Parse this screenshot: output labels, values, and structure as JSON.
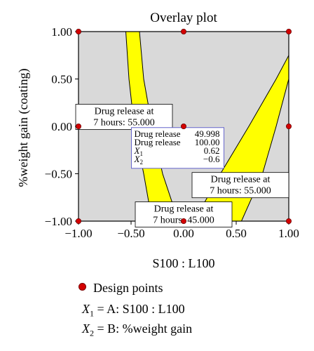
{
  "chart_data": {
    "type": "overlay contour",
    "title": "Overlay plot",
    "xlabel": "S100 : L100",
    "ylabel": "%weight gain (coating)",
    "xlim": [
      -1.0,
      1.0
    ],
    "ylim": [
      -1.0,
      1.0
    ],
    "x_ticks": [
      "−1.00",
      "−0.50",
      "0.00",
      "0.50",
      "1.00"
    ],
    "y_ticks": [
      "1.00",
      "0.50",
      "0.00",
      "−0.50",
      "−1.00"
    ],
    "grid": false,
    "colors": {
      "background": "#d9d9d9",
      "feasible": "#ffff00",
      "design_points": "#d40000"
    },
    "design_points": [
      {
        "x": -1,
        "y": 1
      },
      {
        "x": 0,
        "y": 1
      },
      {
        "x": 1,
        "y": 1
      },
      {
        "x": -1,
        "y": 0
      },
      {
        "x": 0,
        "y": 0
      },
      {
        "x": 1,
        "y": 0
      },
      {
        "x": -1,
        "y": -1
      },
      {
        "x": 0,
        "y": -1
      },
      {
        "x": 1,
        "y": -1
      }
    ],
    "feasible_bands": [
      {
        "name": "left band",
        "left_edge": [
          [
            -0.55,
            1.0
          ],
          [
            -0.52,
            0.5
          ],
          [
            -0.47,
            0.0
          ],
          [
            -0.38,
            -0.5
          ],
          [
            -0.3,
            -1.0
          ]
        ],
        "right_edge": [
          [
            -0.42,
            1.0
          ],
          [
            -0.38,
            0.5
          ],
          [
            -0.3,
            0.0
          ],
          [
            -0.2,
            -0.5
          ],
          [
            -0.05,
            -1.0
          ]
        ]
      },
      {
        "name": "right band",
        "left_edge": [
          [
            0.1,
            -1.0
          ],
          [
            0.35,
            -0.5
          ],
          [
            0.62,
            0.0
          ],
          [
            0.88,
            0.5
          ],
          [
            1.0,
            0.75
          ]
        ],
        "right_edge": [
          [
            0.55,
            -1.0
          ],
          [
            0.75,
            -0.5
          ],
          [
            0.88,
            0.0
          ],
          [
            1.0,
            0.5
          ]
        ]
      }
    ],
    "annotations": [
      {
        "lines": [
          "Drug release at",
          "7 hours: 55.000"
        ],
        "x": -0.7,
        "y": 0.1
      },
      {
        "lines": [
          "Drug release at",
          "7 hours: 55.000"
        ],
        "x": 0.62,
        "y": -0.62
      },
      {
        "lines": [
          "Drug release at",
          "7 hours: 45.000"
        ],
        "x": 0.0,
        "y": -0.93
      }
    ],
    "readout": {
      "x": -0.25,
      "y": -0.05,
      "rows": [
        {
          "label": "Drug release",
          "value": "49.998"
        },
        {
          "label": "Drug release",
          "value": "100.00"
        },
        {
          "label": "X",
          "sub": "1",
          "value": "0.62"
        },
        {
          "label": "X",
          "sub": "2",
          "value": "−0.6"
        }
      ]
    }
  },
  "legend": {
    "marker_label": "Design points",
    "factors": [
      {
        "symbol": "X",
        "sub": "1",
        "text": "= A: S100 : L100"
      },
      {
        "symbol": "X",
        "sub": "2",
        "text": "= B: %weight gain"
      }
    ]
  }
}
